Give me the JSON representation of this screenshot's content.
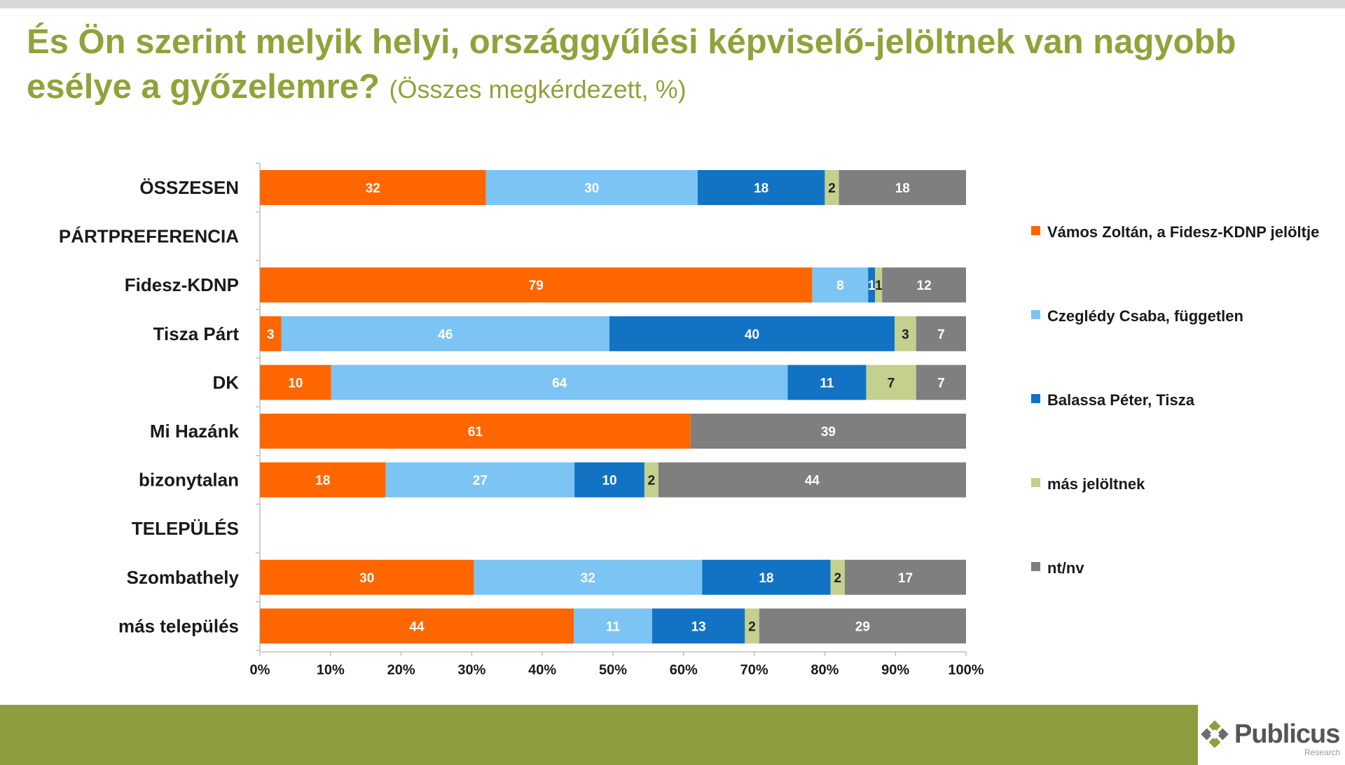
{
  "header": {
    "title": "És Ön szerint melyik helyi, országgyűlési képviselő-jelöltnek van nagyobb esélye a győzelemre?",
    "subtitle": "(Összes megkérdezett, %)"
  },
  "colors": {
    "title": "#8fa33a",
    "footer": "#8e9e3f"
  },
  "chart_data": {
    "type": "bar",
    "orientation": "horizontal-stacked-100",
    "categories": [
      "ÖSSZESEN",
      "PÁRTPREFERENCIA",
      "Fidesz-KDNP",
      "Tisza Párt",
      "DK",
      "Mi Hazánk",
      "bizonytalan",
      "TELEPÜLÉS",
      "Szombathely",
      "más település"
    ],
    "series": [
      {
        "name": "Vámos Zoltán, a Fidesz-KDNP jelöltje",
        "color": "#ff6600",
        "values": [
          32,
          null,
          79,
          3,
          10,
          61,
          18,
          null,
          30,
          44
        ]
      },
      {
        "name": "Czeglédy Csaba, független",
        "color": "#7cc4f4",
        "values": [
          30,
          null,
          8,
          46,
          64,
          null,
          27,
          null,
          32,
          11
        ]
      },
      {
        "name": "Balassa Péter, Tisza",
        "color": "#1273c4",
        "values": [
          18,
          null,
          1,
          40,
          11,
          null,
          10,
          null,
          18,
          13
        ]
      },
      {
        "name": "más jelöltnek",
        "color": "#c3d08e",
        "values": [
          2,
          null,
          1,
          3,
          7,
          null,
          2,
          null,
          2,
          2
        ]
      },
      {
        "name": "nt/nv",
        "color": "#7f7f7f",
        "values": [
          18,
          null,
          12,
          7,
          7,
          39,
          44,
          null,
          17,
          29
        ]
      }
    ],
    "xlim": [
      0,
      100
    ],
    "xticks": [
      "0%",
      "10%",
      "20%",
      "30%",
      "40%",
      "50%",
      "60%",
      "70%",
      "80%",
      "90%",
      "100%"
    ],
    "legend_position": "right",
    "grid": false
  },
  "logo": {
    "name": "Publicus",
    "sub": "Research"
  }
}
